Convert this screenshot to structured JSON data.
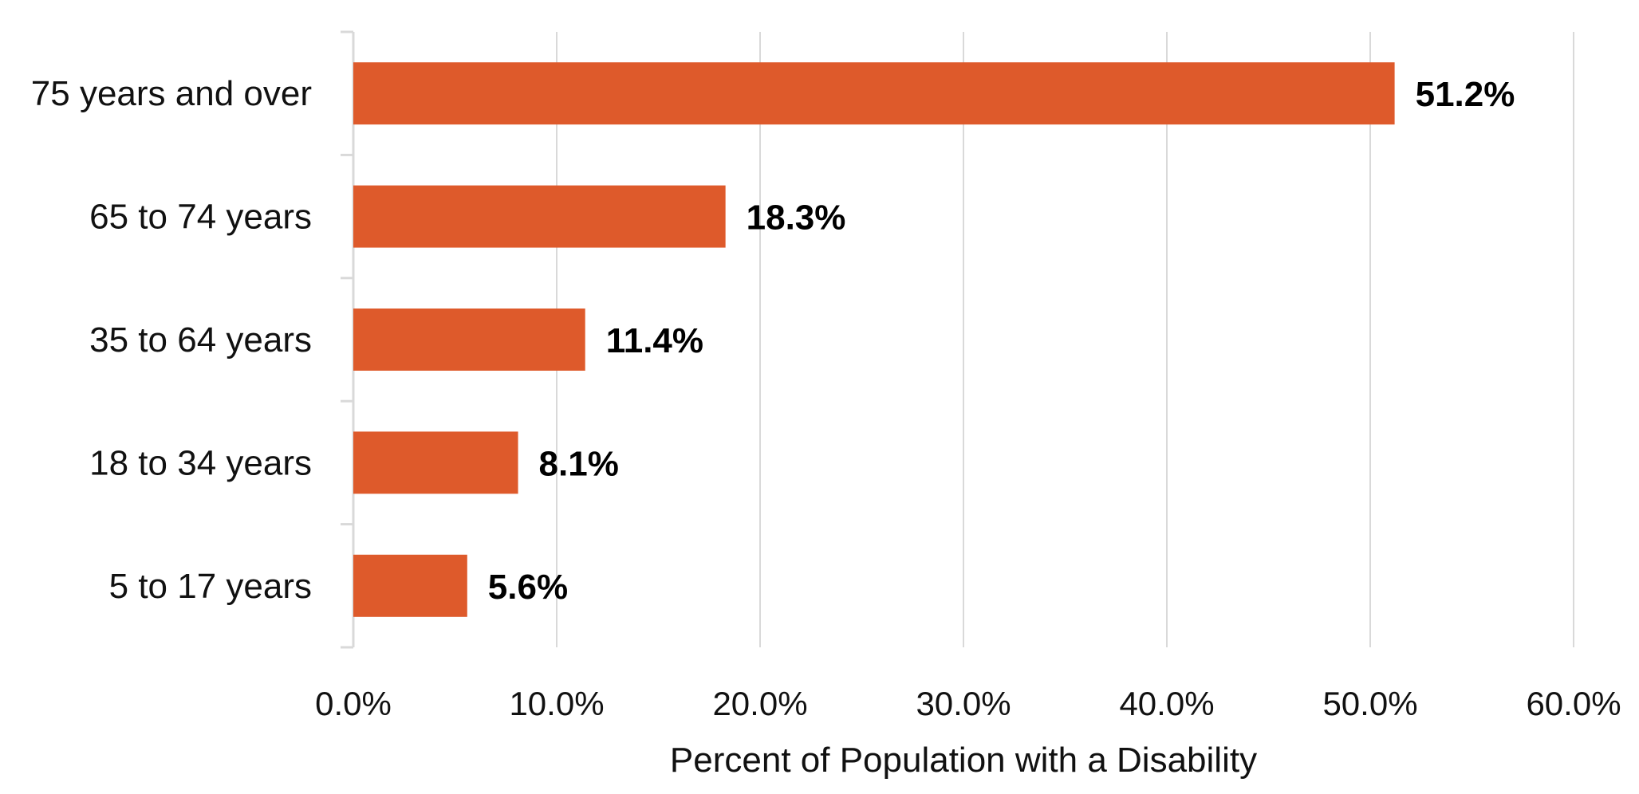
{
  "chart_data": {
    "type": "bar",
    "orientation": "horizontal",
    "categories": [
      "75 years and over",
      "65 to 74 years",
      "35 to 64 years",
      "18 to 34 years",
      "5 to 17 years"
    ],
    "values": [
      51.2,
      18.3,
      11.4,
      8.1,
      5.6
    ],
    "value_labels": [
      "51.2%",
      "18.3%",
      "11.4%",
      "8.1%",
      "5.6%"
    ],
    "xlabel": "Percent of Population with a Disability",
    "ylabel": "",
    "xlim": [
      0,
      60
    ],
    "ticks": [
      0,
      10,
      20,
      30,
      40,
      50,
      60
    ],
    "tick_labels": [
      "0.0%",
      "10.0%",
      "20.0%",
      "30.0%",
      "40.0%",
      "50.0%",
      "60.0%"
    ],
    "grid": true,
    "legend": "none",
    "colors": {
      "bar": "#DE5A2B",
      "grid": "#D9D9D9",
      "axis": "#D9D9D9"
    }
  }
}
